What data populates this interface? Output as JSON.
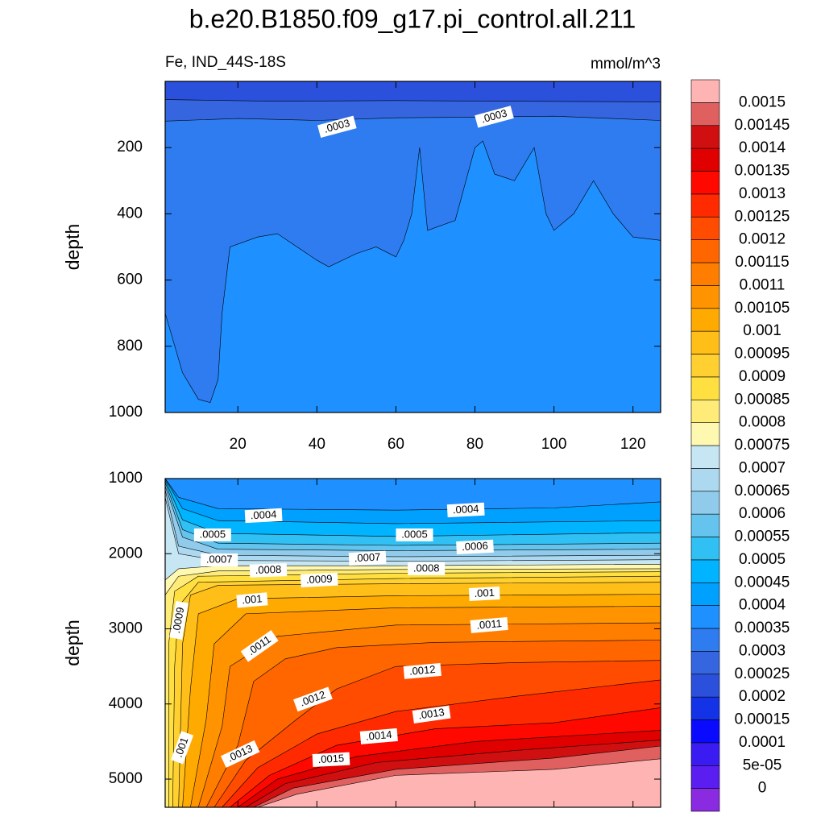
{
  "chart_data": [
    {
      "type": "contour",
      "title": "b.e20.B1850.f09_g17.pi_control.all.211",
      "subtitle": "Fe, IND_44S-18S",
      "units": "mmol/m^3",
      "ylabel": "depth",
      "xlim": [
        1.6,
        127
      ],
      "ylim": [
        0,
        1000
      ],
      "xticks": [
        20,
        40,
        60,
        80,
        100,
        120
      ],
      "yticks": [
        200,
        400,
        600,
        800,
        1000
      ],
      "x_tick_labels": true,
      "contours": [
        {
          "level": 0.00025,
          "x": [
            1.6,
            30,
            60,
            90,
            127
          ],
          "depth": [
            55,
            60,
            58,
            60,
            62
          ]
        },
        {
          "level": 0.0003,
          "x": [
            1.6,
            20,
            40,
            60,
            80,
            100,
            127
          ],
          "depth": [
            120,
            112,
            118,
            110,
            108,
            105,
            118
          ]
        },
        {
          "level": 0.00035,
          "x": [
            1.6,
            6,
            10,
            13,
            15,
            16,
            18,
            25,
            30,
            35,
            40,
            43,
            50,
            55,
            60,
            62,
            64,
            66,
            68,
            75,
            80,
            82,
            85,
            90,
            95,
            98,
            100,
            105,
            110,
            115,
            120,
            127
          ],
          "depth": [
            700,
            880,
            960,
            970,
            900,
            700,
            500,
            470,
            460,
            500,
            540,
            560,
            520,
            500,
            530,
            480,
            400,
            200,
            450,
            420,
            200,
            180,
            280,
            300,
            200,
            400,
            450,
            400,
            300,
            400,
            470,
            480
          ]
        }
      ],
      "labels": [
        {
          "value": 0.0003,
          "label": ".0003",
          "x": 45.1,
          "depth": 137
        },
        {
          "value": 0.0003,
          "label": ".0003",
          "x": 84.9,
          "depth": 107
        }
      ]
    },
    {
      "type": "contour",
      "ylabel": "depth",
      "xlim": [
        1.6,
        127
      ],
      "ylim": [
        1000,
        5375
      ],
      "xticks": [
        20,
        40,
        60,
        80,
        100,
        120
      ],
      "yticks": [
        1000,
        2000,
        3000,
        4000,
        5000
      ],
      "x_tick_labels": false,
      "contours": [
        {
          "level": 0.0004,
          "x": [
            1.6,
            5,
            15,
            60,
            100,
            127
          ],
          "depth": [
            1000,
            1250,
            1400,
            1420,
            1390,
            1310
          ]
        },
        {
          "level": 0.00045,
          "x": [
            1.6,
            6,
            15,
            60,
            127
          ],
          "depth": [
            1000,
            1400,
            1560,
            1600,
            1560
          ]
        },
        {
          "level": 0.0005,
          "x": [
            1.6,
            6,
            15,
            60,
            127
          ],
          "depth": [
            1020,
            1550,
            1730,
            1770,
            1720
          ]
        },
        {
          "level": 0.00055,
          "x": [
            1.6,
            6,
            15,
            60,
            127
          ],
          "depth": [
            1050,
            1680,
            1860,
            1890,
            1860
          ]
        },
        {
          "level": 0.0006,
          "x": [
            1.6,
            6,
            15,
            60,
            127
          ],
          "depth": [
            1100,
            1780,
            1940,
            1960,
            1940
          ]
        },
        {
          "level": 0.00065,
          "x": [
            1.6,
            5,
            15,
            60,
            127
          ],
          "depth": [
            1150,
            1900,
            2020,
            2040,
            2020
          ]
        },
        {
          "level": 0.0007,
          "x": [
            1.6,
            5,
            15,
            60,
            127
          ],
          "depth": [
            1250,
            2000,
            2090,
            2100,
            2080
          ]
        },
        {
          "level": 0.00075,
          "x": [
            1.6,
            5,
            15,
            60,
            127
          ],
          "depth": [
            2350,
            2200,
            2160,
            2160,
            2140
          ]
        },
        {
          "level": 0.0008,
          "x": [
            1.6,
            5,
            15,
            60,
            127
          ],
          "depth": [
            2550,
            2300,
            2230,
            2210,
            2200
          ]
        },
        {
          "level": 0.00085,
          "x": [
            2.5,
            2.5,
            4,
            10,
            60,
            127
          ],
          "depth": [
            5375,
            3200,
            2500,
            2300,
            2260,
            2240
          ]
        },
        {
          "level": 0.0009,
          "x": [
            3.5,
            4,
            5,
            10,
            60,
            127
          ],
          "depth": [
            5375,
            3500,
            2700,
            2380,
            2330,
            2300
          ]
        },
        {
          "level": 0.00095,
          "x": [
            5,
            6,
            8,
            15,
            60,
            127
          ],
          "depth": [
            5375,
            3200,
            2550,
            2420,
            2400,
            2380
          ]
        },
        {
          "level": 0.001,
          "x": [
            6,
            8,
            10,
            20,
            60,
            127
          ],
          "depth": [
            5375,
            3800,
            2800,
            2600,
            2560,
            2540
          ]
        },
        {
          "level": 0.00105,
          "x": [
            8,
            12,
            14,
            22,
            60,
            127
          ],
          "depth": [
            5375,
            4200,
            3200,
            2800,
            2720,
            2700
          ]
        },
        {
          "level": 0.0011,
          "x": [
            10,
            16,
            18,
            30,
            60,
            127
          ],
          "depth": [
            5375,
            4300,
            3500,
            3100,
            2950,
            2920
          ]
        },
        {
          "level": 0.00115,
          "x": [
            12,
            20,
            24,
            32,
            45,
            70,
            127
          ],
          "depth": [
            5375,
            4550,
            3700,
            3400,
            3250,
            3180,
            3150
          ]
        },
        {
          "level": 0.0012,
          "x": [
            14,
            22,
            35,
            45,
            60,
            90,
            127
          ],
          "depth": [
            5375,
            4750,
            4200,
            3800,
            3500,
            3450,
            3420
          ]
        },
        {
          "level": 0.00125,
          "x": [
            16,
            25,
            40,
            60,
            90,
            127
          ],
          "depth": [
            5375,
            4850,
            4400,
            4100,
            3900,
            3680
          ]
        },
        {
          "level": 0.0013,
          "x": [
            18,
            28,
            45,
            70,
            100,
            127
          ],
          "depth": [
            5375,
            4950,
            4550,
            4330,
            4250,
            4050
          ]
        },
        {
          "level": 0.00135,
          "x": [
            20,
            30,
            50,
            80,
            127
          ],
          "depth": [
            5375,
            5000,
            4700,
            4500,
            4350
          ]
        },
        {
          "level": 0.0014,
          "x": [
            22,
            32,
            55,
            90,
            127
          ],
          "depth": [
            5375,
            5060,
            4780,
            4620,
            4480
          ]
        },
        {
          "level": 0.00145,
          "x": [
            24,
            34,
            60,
            100,
            127
          ],
          "depth": [
            5375,
            5120,
            4870,
            4720,
            4560
          ]
        },
        {
          "level": 0.0015,
          "x": [
            25,
            35,
            60,
            100,
            127
          ],
          "depth": [
            5375,
            5200,
            4950,
            4870,
            4730
          ]
        }
      ],
      "labels": [
        {
          "value": 0.0004,
          "label": ".0004",
          "x": 26.5,
          "depth": 1493
        },
        {
          "value": 0.0004,
          "label": ".0004",
          "x": 77.7,
          "depth": 1418
        },
        {
          "value": 0.0005,
          "label": ".0005",
          "x": 13.6,
          "depth": 1750
        },
        {
          "value": 0.0005,
          "label": ".0005",
          "x": 64.7,
          "depth": 1750
        },
        {
          "value": 0.0006,
          "label": ".0006",
          "x": 80,
          "depth": 1911
        },
        {
          "value": 0.0007,
          "label": ".0007",
          "x": 15.3,
          "depth": 2083
        },
        {
          "value": 0.0007,
          "label": ".0007",
          "x": 52.8,
          "depth": 2061
        },
        {
          "value": 0.0008,
          "label": ".0008",
          "x": 27.7,
          "depth": 2222
        },
        {
          "value": 0.0008,
          "label": ".0008",
          "x": 67.7,
          "depth": 2200
        },
        {
          "value": 0.0009,
          "label": ".0009",
          "x": 40.6,
          "depth": 2350
        },
        {
          "value": 0.0009,
          "label": ".0009",
          "x": 5.1,
          "depth": 2886
        },
        {
          "value": 0.001,
          "label": ".001",
          "x": 23.6,
          "depth": 2618
        },
        {
          "value": 0.001,
          "label": ".001",
          "x": 82.4,
          "depth": 2533
        },
        {
          "value": 0.0011,
          "label": ".0011",
          "x": 25.5,
          "depth": 3229
        },
        {
          "value": 0.0011,
          "label": ".0011",
          "x": 83.6,
          "depth": 2951
        },
        {
          "value": 0.0012,
          "label": ".0012",
          "x": 66.7,
          "depth": 3562
        },
        {
          "value": 0.0012,
          "label": ".0012",
          "x": 39,
          "depth": 3937
        },
        {
          "value": 0.0013,
          "label": ".0013",
          "x": 69,
          "depth": 4140
        },
        {
          "value": 0.0013,
          "label": ".0013",
          "x": 20.6,
          "depth": 4666
        },
        {
          "value": 0.0014,
          "label": ".0014",
          "x": 55.7,
          "depth": 4430
        },
        {
          "value": 0.0015,
          "label": ".0015",
          "x": 43.6,
          "depth": 4740
        },
        {
          "value": 0.001,
          "label": ".001",
          "x": 5.9,
          "depth": 4580
        }
      ]
    }
  ],
  "colorbar": {
    "ticks": [
      0,
      {
        "value": 5e-05,
        "label": "5e-05"
      },
      0.0001,
      0.00015,
      0.0002,
      0.00025,
      0.0003,
      0.00035,
      0.0004,
      0.00045,
      0.0005,
      0.00055,
      0.0006,
      0.00065,
      0.0007,
      0.00075,
      0.0008,
      0.00085,
      0.0009,
      0.00095,
      0.001,
      0.00105,
      0.0011,
      0.00115,
      0.0012,
      0.00125,
      0.0013,
      0.00135,
      0.0014,
      0.00145,
      0.0015
    ],
    "colors": [
      "#8a2be2",
      "#5a1ef0",
      "#3a1cf2",
      "#0a0aff",
      "#1432e6",
      "#2a50dc",
      "#3566e0",
      "#2e7cf0",
      "#1e90ff",
      "#00a0ff",
      "#00b4ff",
      "#30c0f4",
      "#64c4ee",
      "#90cbec",
      "#acd8f0",
      "#c6e6f4",
      "#fff8b0",
      "#ffec78",
      "#ffe040",
      "#ffd030",
      "#ffbe18",
      "#ffaa00",
      "#ff9400",
      "#ff7e00",
      "#ff6600",
      "#ff4c00",
      "#ff2a00",
      "#ff0800",
      "#e00000",
      "#d01010",
      "#e06060",
      "#ffb4b4"
    ]
  }
}
